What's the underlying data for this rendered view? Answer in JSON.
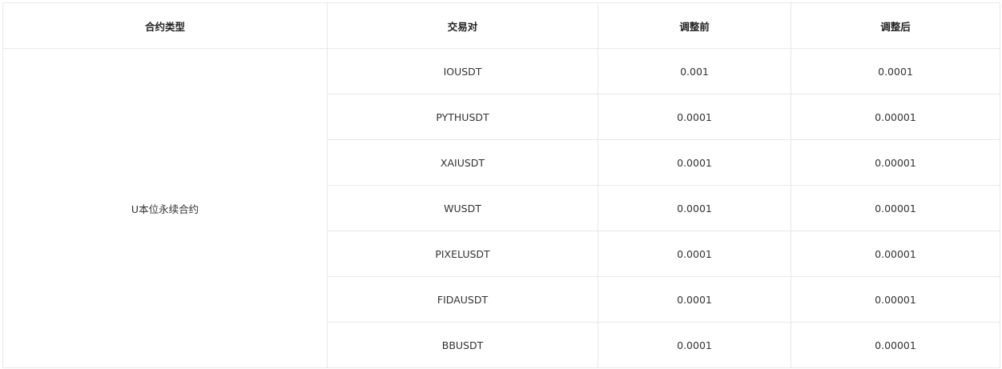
{
  "headers": [
    "合约类型",
    "交易对",
    "调整前",
    "调整后"
  ],
  "contract_type": "U本位永续合约",
  "rows": [
    {
      "pair": "IOUSDT",
      "before": "0.001",
      "after": "0.0001"
    },
    {
      "pair": "PYTHUSDT",
      "before": "0.0001",
      "after": "0.00001"
    },
    {
      "pair": "XAIUSDT",
      "before": "0.0001",
      "after": "0.00001"
    },
    {
      "pair": "WUSDT",
      "before": "0.0001",
      "after": "0.00001"
    },
    {
      "pair": "PIXELUSDT",
      "before": "0.0001",
      "after": "0.00001"
    },
    {
      "pair": "FIDAUSDT",
      "before": "0.0001",
      "after": "0.00001"
    },
    {
      "pair": "BBUSDT",
      "before": "0.0001",
      "after": "0.00001"
    }
  ]
}
